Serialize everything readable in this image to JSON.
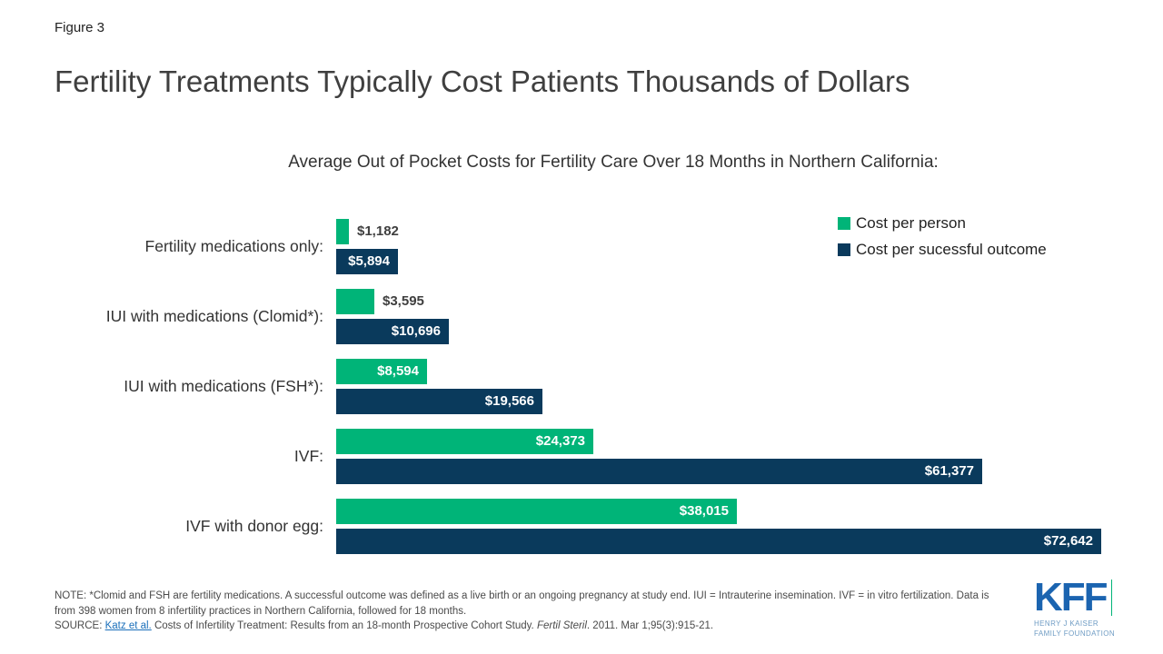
{
  "figure_label": "Figure 3",
  "title": "Fertility Treatments Typically Cost Patients Thousands of Dollars",
  "subtitle": "Average Out of Pocket Costs for Fertility Care Over 18 Months in Northern California:",
  "colors": {
    "green": "#00b478",
    "navy": "#0a3a5c",
    "title_text": "#3f3f3f",
    "link_blue": "#1a6fba",
    "logo_blue": "#1b64b0"
  },
  "legend": [
    {
      "label": "Cost per person",
      "color": "#00b478"
    },
    {
      "label": "Cost per sucessful outcome",
      "color": "#0a3a5c"
    }
  ],
  "chart_data": {
    "type": "bar",
    "orientation": "horizontal",
    "title": "Average Out of Pocket Costs for Fertility Care Over 18 Months in Northern California:",
    "categories": [
      "Fertility medications only:",
      "IUI with medications (Clomid*):",
      "IUI with medications (FSH*):",
      "IVF:",
      "IVF with donor egg:"
    ],
    "series": [
      {
        "name": "Cost per person",
        "values": [
          1182,
          3595,
          8594,
          24373,
          38015
        ],
        "labels": [
          "$1,182",
          "$3,595",
          "$8,594",
          "$24,373",
          "$38,015"
        ]
      },
      {
        "name": "Cost per sucessful outcome",
        "values": [
          5894,
          10696,
          19566,
          61377,
          72642
        ],
        "labels": [
          "$5,894",
          "$10,696",
          "$19,566",
          "$61,377",
          "$72,642"
        ]
      }
    ],
    "xlim": [
      0,
      72642
    ],
    "grid": false,
    "legend_position": "top-right"
  },
  "note": {
    "label": "NOTE:",
    "text": "*Clomid and FSH are fertility medications. A successful outcome was defined as a live birth or an ongoing pregnancy at study end. IUI = Intrauterine insemination. IVF = in vitro fertilization. Data is from 398 women from 8 infertility practices in Northern California, followed for 18 months."
  },
  "source": {
    "label": "SOURCE:",
    "link": "Katz et al.",
    "text_mid": "Costs of Infertility Treatment: Results from an 18-month Prospective Cohort Study.",
    "journal": "Fertil Steril",
    "text_end": ". 2011. Mar 1;95(3):915-21."
  },
  "logo": {
    "text": "KFF",
    "line1": "HENRY J KAISER",
    "line2": "FAMILY FOUNDATION"
  }
}
